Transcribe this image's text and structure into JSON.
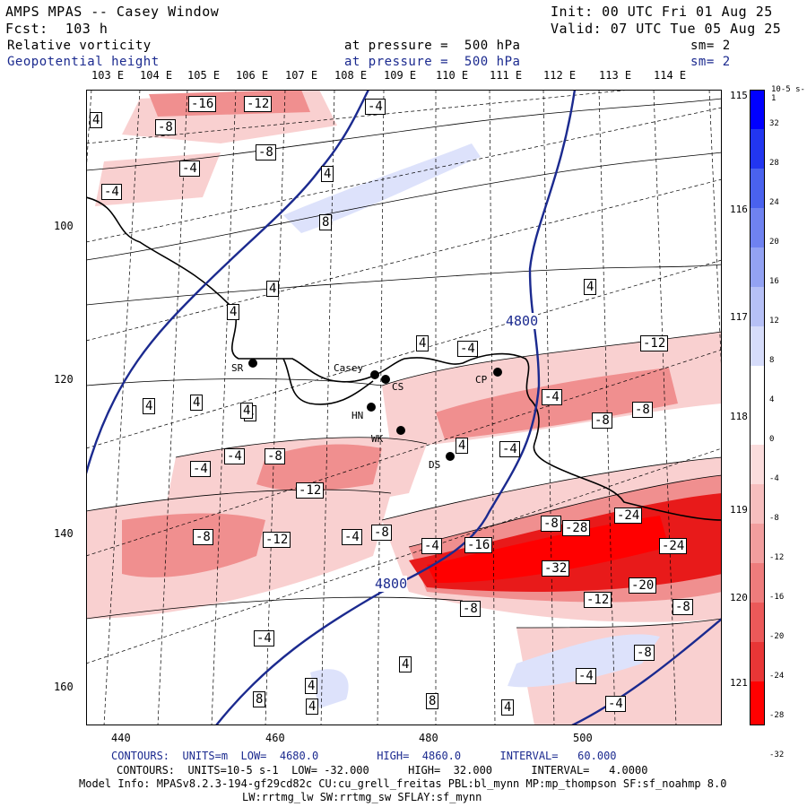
{
  "header": {
    "title": "AMPS MPAS -- Casey Window",
    "forecast": "Fcst:  103 h",
    "init": "Init: 00 UTC Fri 01 Aug 25",
    "valid": "Valid: 07 UTC Tue 05 Aug 25",
    "field1": {
      "name": "Relative vorticity",
      "level": "at pressure =  500 hPa",
      "sm": "sm= 2"
    },
    "field2": {
      "name": "Geopotential height",
      "level": "at pressure =  500 hPa",
      "sm": "sm= 2"
    }
  },
  "map": {
    "top_longitudes": [
      "103 E",
      "104 E",
      "105 E",
      "106 E",
      "107 E",
      "108 E",
      "109 E",
      "110 E",
      "111 E",
      "112 E",
      "113 E",
      "114 E"
    ],
    "right_longitudes": [
      "115 E",
      "116 E",
      "117 E",
      "118 E",
      "119 E",
      "120 E",
      "121 E"
    ],
    "y_ticks": [
      "100",
      "120",
      "140",
      "160"
    ],
    "x_ticks": [
      "440",
      "460",
      "480",
      "500"
    ],
    "stations": [
      {
        "name": "SR"
      },
      {
        "name": "Casey"
      },
      {
        "name": "CS"
      },
      {
        "name": "HN"
      },
      {
        "name": "WK"
      },
      {
        "name": "DS"
      },
      {
        "name": "CP"
      }
    ],
    "height_labels": [
      "4800",
      "4800"
    ],
    "vorticity_labels": [
      "-16",
      "-12",
      "-4",
      "-8",
      "-4",
      "4",
      "-8",
      "-4",
      "4",
      "8",
      "4",
      "4",
      "4",
      "4",
      "4",
      "-4",
      "4",
      "4",
      "-4",
      "-12",
      "-8",
      "-8",
      "4",
      "-4",
      "-4",
      "-8",
      "-12",
      "-4",
      "-4",
      "-8",
      "-12",
      "-8",
      "4",
      "-8",
      "-4",
      "-16",
      "-28",
      "-24",
      "-32",
      "-24",
      "-12",
      "-20",
      "-8",
      "-8",
      "-8",
      "-4",
      "-4",
      "4",
      "4",
      "4",
      "8",
      "4",
      "8",
      "-4",
      "-4"
    ],
    "colors": {
      "positive": "#3050d8",
      "negative": "#e81010",
      "height_contour": "#1b2a8f"
    }
  },
  "colorbar": {
    "unit": "10-5 s-1",
    "labels": [
      "32",
      "28",
      "24",
      "20",
      "16",
      "12",
      "8",
      "4",
      "0",
      "-4",
      "-8",
      "-12",
      "-16",
      "-20",
      "-24",
      "-28",
      "-32"
    ]
  },
  "footer": {
    "line1": "CONTOURS:  UNITS=m  LOW=  4680.0         HIGH=  4860.0      INTERVAL=   60.000",
    "line2": "CONTOURS:  UNITS=10-5 s-1  LOW= -32.000      HIGH=  32.000      INTERVAL=   4.0000",
    "line3": "Model Info: MPASv8.2.3-194-gf29cd82c CU:cu_grell_freitas PBL:bl_mynn MP:mp_thompson SF:sf_noahmp 8.0",
    "line4": "LW:rrtmg_lw SW:rrtmg_sw SFLAY:sf_mynn"
  }
}
